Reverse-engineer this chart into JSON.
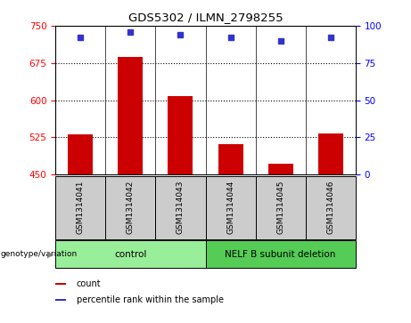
{
  "title": "GDS5302 / ILMN_2798255",
  "samples": [
    "GSM1314041",
    "GSM1314042",
    "GSM1314043",
    "GSM1314044",
    "GSM1314045",
    "GSM1314046"
  ],
  "counts": [
    530,
    688,
    608,
    512,
    472,
    532
  ],
  "percentile_ranks": [
    92,
    96,
    94,
    92,
    90,
    92
  ],
  "ylim_left": [
    450,
    750
  ],
  "ylim_right": [
    0,
    100
  ],
  "yticks_left": [
    450,
    525,
    600,
    675,
    750
  ],
  "yticks_right": [
    0,
    25,
    50,
    75,
    100
  ],
  "bar_color": "#cc0000",
  "dot_color": "#3333cc",
  "groups": [
    {
      "label": "control",
      "samples": [
        0,
        1,
        2
      ],
      "color": "#99ee99"
    },
    {
      "label": "NELF B subunit deletion",
      "samples": [
        3,
        4,
        5
      ],
      "color": "#55cc55"
    }
  ],
  "legend_items": [
    {
      "color": "#cc0000",
      "label": "count"
    },
    {
      "color": "#3333cc",
      "label": "percentile rank within the sample"
    }
  ],
  "bg_color": "#cccccc",
  "fig_width": 4.61,
  "fig_height": 3.63
}
